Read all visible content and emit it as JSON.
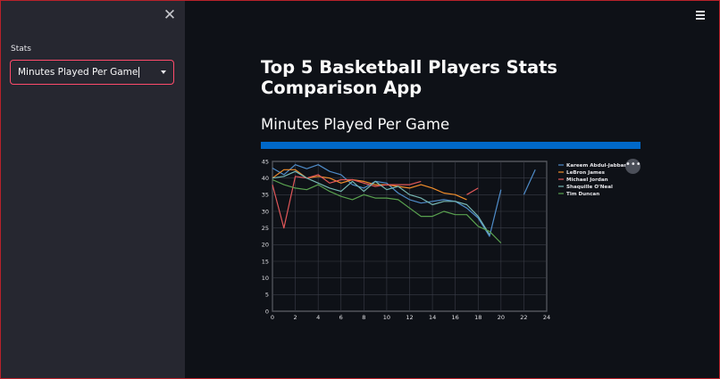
{
  "sidebar": {
    "close_icon": "close-icon",
    "stats_label": "Stats",
    "select": {
      "value": "Minutes Played Per Game",
      "arrow_icon": "chevron-down-icon"
    }
  },
  "header": {
    "menu_icon": "hamburger-icon"
  },
  "main": {
    "title": "Top 5 Basketball Players Stats Comparison App",
    "subheader": "Minutes Played Per Game",
    "progress": {
      "value": 100,
      "color": "#0068c9"
    },
    "chart_options_icon": "more-horizontal-icon"
  },
  "chart_data": {
    "type": "line",
    "title": "",
    "xlabel": "",
    "ylabel": "",
    "xlim": [
      0,
      24
    ],
    "ylim": [
      0,
      45
    ],
    "xticks": [
      0,
      2,
      4,
      6,
      8,
      10,
      12,
      14,
      16,
      18,
      20,
      22,
      24
    ],
    "yticks": [
      0,
      5,
      10,
      15,
      20,
      25,
      30,
      35,
      40,
      45
    ],
    "grid": true,
    "legend_position": "right",
    "series": [
      {
        "name": "Kareem Abdul-Jabbar",
        "color": "#4f8cc9",
        "x": [
          0,
          1,
          2,
          3,
          4,
          5,
          6,
          7,
          8,
          9,
          10,
          11,
          12,
          13,
          14,
          15,
          16,
          17,
          18,
          19,
          20,
          null,
          22,
          23
        ],
        "y": [
          43,
          41,
          44,
          42.8,
          44,
          42,
          41,
          38,
          37,
          39,
          38.5,
          35.5,
          33.5,
          32.5,
          33,
          33.5,
          33,
          31,
          28,
          22.5,
          36.5,
          null,
          35,
          42.5
        ]
      },
      {
        "name": "LeBron James",
        "color": "#f28e2b",
        "x": [
          0,
          1,
          2,
          3,
          4,
          5,
          6,
          7,
          8,
          9,
          10,
          11,
          12,
          13,
          14,
          15,
          16,
          17
        ],
        "y": [
          40,
          42.5,
          42.5,
          40,
          40.5,
          40,
          38.5,
          39.5,
          39,
          38,
          38,
          37.5,
          37,
          38,
          37,
          35.5,
          35,
          33.5
        ]
      },
      {
        "name": "Michael Jordan",
        "color": "#e15759",
        "x": [
          0,
          1,
          2,
          3,
          4,
          5,
          6,
          7,
          8,
          9,
          10,
          11,
          12,
          13,
          null,
          17,
          18
        ],
        "y": [
          38,
          25,
          40.5,
          40,
          41,
          38.5,
          39.5,
          39.5,
          38.5,
          37.5,
          38,
          38,
          38,
          39,
          null,
          35,
          37
        ]
      },
      {
        "name": "Shaquille O'Neal",
        "color": "#76b7b2",
        "x": [
          0,
          1,
          2,
          3,
          4,
          5,
          6,
          7,
          8,
          9,
          10,
          11,
          12,
          13,
          14,
          15,
          16,
          17,
          18,
          19
        ],
        "y": [
          40,
          40.5,
          42,
          40,
          38.5,
          37,
          36,
          39,
          36,
          39,
          36.5,
          37.5,
          35,
          34,
          32,
          33,
          33,
          32,
          28.5,
          23
        ]
      },
      {
        "name": "Tim Duncan",
        "color": "#59a14f",
        "x": [
          0,
          1,
          2,
          3,
          4,
          5,
          6,
          7,
          8,
          9,
          10,
          11,
          12,
          13,
          14,
          15,
          16,
          17,
          18,
          19,
          20
        ],
        "y": [
          39.5,
          38,
          37,
          36.5,
          38,
          36,
          34.5,
          33.5,
          35,
          34,
          34,
          33.5,
          31,
          28.5,
          28.5,
          30,
          29,
          29,
          25.5,
          24,
          20.5
        ]
      }
    ]
  }
}
